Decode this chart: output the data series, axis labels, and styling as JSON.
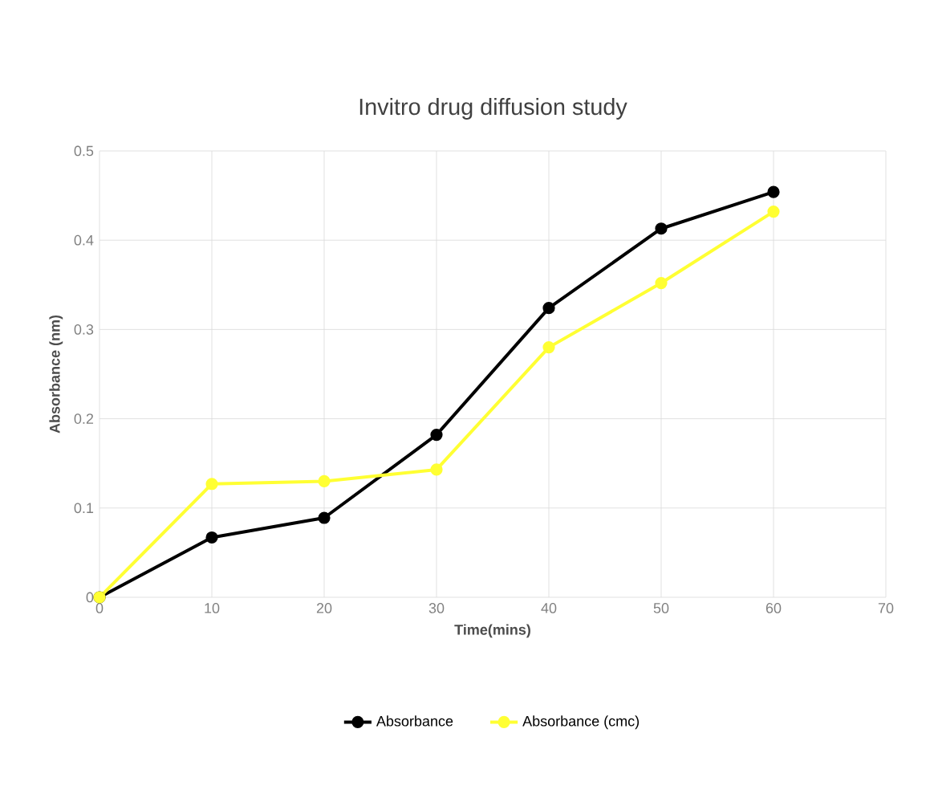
{
  "chart_data": {
    "type": "line",
    "title": "Invitro drug diffusion study",
    "xlabel": "Time(mins)",
    "ylabel": "Absorbance (nm)",
    "x": [
      0,
      10,
      20,
      30,
      40,
      50,
      60
    ],
    "series": [
      {
        "name": "Absorbance",
        "color": "#000000",
        "values": [
          0,
          0.067,
          0.089,
          0.182,
          0.324,
          0.413,
          0.454
        ]
      },
      {
        "name": "Absorbance (cmc)",
        "color": "#ffff33",
        "values": [
          0,
          0.127,
          0.13,
          0.143,
          0.28,
          0.352,
          0.432
        ]
      }
    ],
    "xlim": [
      0,
      70
    ],
    "xticks": [
      0,
      10,
      20,
      30,
      40,
      50,
      60,
      70
    ],
    "ylim": [
      0,
      0.5
    ],
    "yticks": [
      0,
      0.1,
      0.2,
      0.3,
      0.4,
      0.5
    ],
    "grid": true,
    "legend": "bottom",
    "marker": "circle",
    "line_style": "solid"
  }
}
